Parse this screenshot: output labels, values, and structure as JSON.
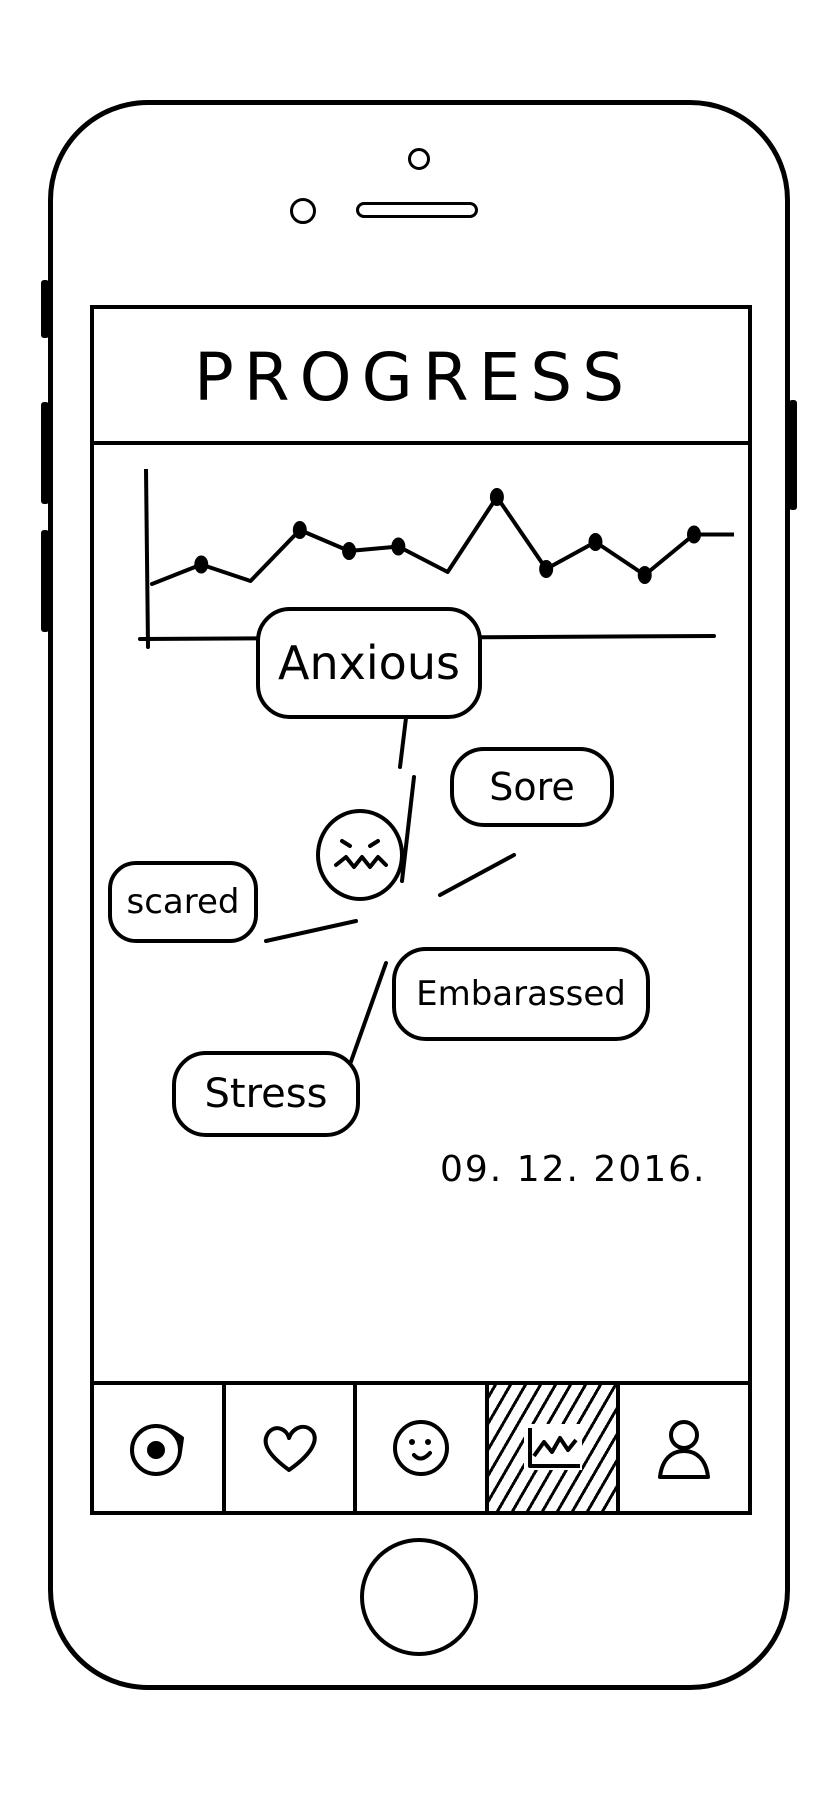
{
  "header": {
    "title": "PROGRESS"
  },
  "chart_data": {
    "type": "line",
    "x": [
      1,
      2,
      3,
      4,
      5,
      6,
      7,
      8,
      9,
      10,
      11,
      12
    ],
    "values": [
      3.0,
      4.3,
      3.2,
      6.6,
      5.2,
      5.5,
      3.8,
      8.8,
      4.0,
      5.8,
      3.6,
      6.3
    ],
    "marked_points": [
      2,
      4,
      5,
      6,
      8,
      9,
      10,
      11,
      12
    ],
    "title": "",
    "xlabel": "",
    "ylabel": "",
    "ylim": [
      0,
      10
    ],
    "grid": false
  },
  "moods": {
    "center_icon": "worried-face-icon",
    "items": [
      {
        "id": "anxious",
        "label": "Anxious"
      },
      {
        "id": "sore",
        "label": "Sore"
      },
      {
        "id": "scared",
        "label": "scared"
      },
      {
        "id": "embarassed",
        "label": "Embarassed"
      },
      {
        "id": "stress",
        "label": "Stress"
      }
    ]
  },
  "date": "09. 12. 2016.",
  "tabs": [
    {
      "id": "camera",
      "icon": "camera-icon",
      "active": false
    },
    {
      "id": "favorites",
      "icon": "heart-icon",
      "active": false
    },
    {
      "id": "mood",
      "icon": "smiley-icon",
      "active": false
    },
    {
      "id": "progress",
      "icon": "chart-icon",
      "active": true
    },
    {
      "id": "profile",
      "icon": "person-icon",
      "active": false
    }
  ]
}
